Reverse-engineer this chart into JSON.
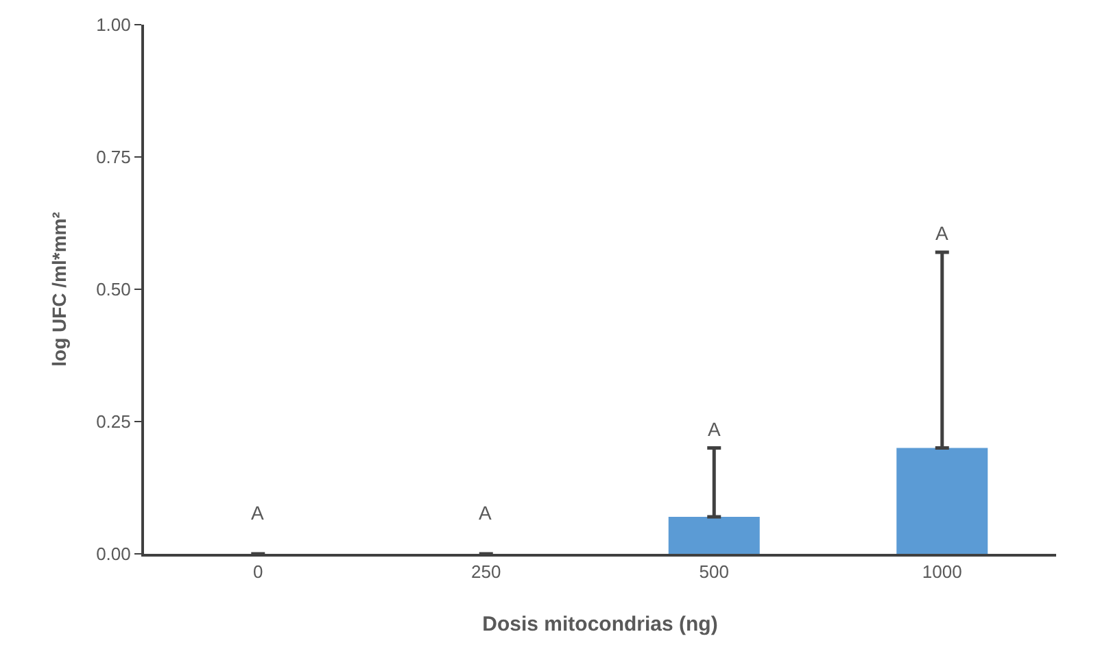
{
  "chart_data": {
    "type": "bar",
    "xlabel": "Dosis mitocondrias (ng)",
    "ylabel": "log UFC /ml*mm²",
    "categories": [
      "0",
      "250",
      "500",
      "1000"
    ],
    "values": [
      0,
      0,
      0.07,
      0.2
    ],
    "errors": [
      null,
      null,
      [
        0.07,
        0.2
      ],
      [
        0.2,
        0.57
      ]
    ],
    "color": "#5b9bd5",
    "ylim": [
      0,
      1
    ],
    "yticks": [
      {
        "value": 0,
        "label": "0.00"
      },
      {
        "value": 0.25,
        "label": "0.25"
      },
      {
        "value": 0.5,
        "label": "0.50"
      },
      {
        "value": 0.75,
        "label": "0.75"
      },
      {
        "value": 1,
        "label": "1.00"
      }
    ],
    "grid": false,
    "annotations": [
      {
        "text": "A",
        "x": "0",
        "y": 0
      },
      {
        "text": "A",
        "x": "250",
        "y": 0
      },
      {
        "text": "A",
        "x": "500",
        "y": 0.2
      },
      {
        "text": "A",
        "x": "1000",
        "y": 0.57
      }
    ]
  }
}
